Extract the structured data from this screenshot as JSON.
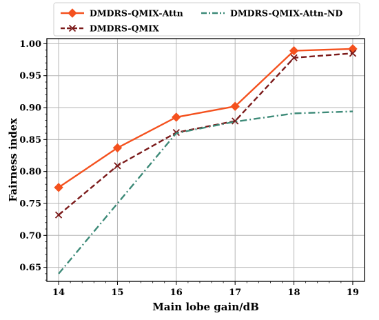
{
  "chart_data": {
    "type": "line",
    "title": "",
    "xlabel": "Main lobe gain/dB",
    "ylabel": "Fairness index",
    "x": [
      14,
      15,
      16,
      17,
      18,
      19
    ],
    "xlim": [
      13.8,
      19.2
    ],
    "ylim": [
      0.628,
      1.008
    ],
    "xticks": [
      14,
      15,
      16,
      17,
      18,
      19
    ],
    "yticks": [
      0.65,
      0.7,
      0.75,
      0.8,
      0.85,
      0.9,
      0.95,
      1.0
    ],
    "ytick_labels": [
      "0.65",
      "0.70",
      "0.75",
      "0.80",
      "0.85",
      "0.90",
      "0.95",
      "1.00"
    ],
    "grid": true,
    "legend_position": "top (outside plot area, 2 columns)",
    "series": [
      {
        "name": "DMDRS-QMIX-Attn",
        "values": [
          0.775,
          0.837,
          0.885,
          0.902,
          0.989,
          0.992
        ],
        "color": "#f4511e",
        "line_style": "solid",
        "marker": "diamond"
      },
      {
        "name": "DMDRS-QMIX",
        "values": [
          0.732,
          0.809,
          0.861,
          0.879,
          0.978,
          0.985
        ],
        "color": "#7b1a1a",
        "line_style": "dashed",
        "marker": "x"
      },
      {
        "name": "DMDRS-QMIX-Attn-ND",
        "values": [
          0.64,
          0.75,
          0.86,
          0.878,
          0.891,
          0.894
        ],
        "color": "#3d8a78",
        "line_style": "dashdot",
        "marker": "none"
      }
    ]
  }
}
